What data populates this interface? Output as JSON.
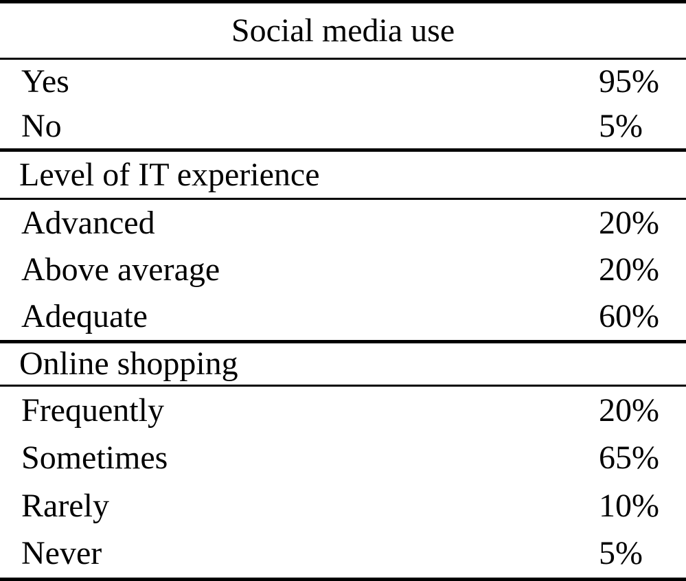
{
  "table": {
    "colors": {
      "text": "#000000",
      "background": "#ffffff",
      "rule": "#000000"
    },
    "sections": [
      {
        "header": "Social media use",
        "header_align": "center",
        "rows": [
          {
            "label": "Yes",
            "value": "95%"
          },
          {
            "label": "No",
            "value": "5%"
          }
        ]
      },
      {
        "header": "Level of IT experience",
        "header_align": "left",
        "rows": [
          {
            "label": "Advanced",
            "value": "20%"
          },
          {
            "label": "Above average",
            "value": "20%"
          },
          {
            "label": "Adequate",
            "value": "60%"
          }
        ]
      },
      {
        "header": "Online shopping",
        "header_align": "left",
        "rows": [
          {
            "label": "Frequently",
            "value": "20%"
          },
          {
            "label": "Sometimes",
            "value": "65%"
          },
          {
            "label": "Rarely",
            "value": "10%"
          },
          {
            "label": "Never",
            "value": "5%"
          }
        ]
      }
    ]
  },
  "chart_data": {
    "type": "table",
    "title": "",
    "sections": [
      {
        "header": "Social media use",
        "categories": [
          "Yes",
          "No"
        ],
        "values_percent": [
          95,
          5
        ]
      },
      {
        "header": "Level of IT experience",
        "categories": [
          "Advanced",
          "Above average",
          "Adequate"
        ],
        "values_percent": [
          20,
          20,
          60
        ]
      },
      {
        "header": "Online shopping",
        "categories": [
          "Frequently",
          "Sometimes",
          "Rarely",
          "Never"
        ],
        "values_percent": [
          20,
          65,
          10,
          5
        ]
      }
    ]
  }
}
